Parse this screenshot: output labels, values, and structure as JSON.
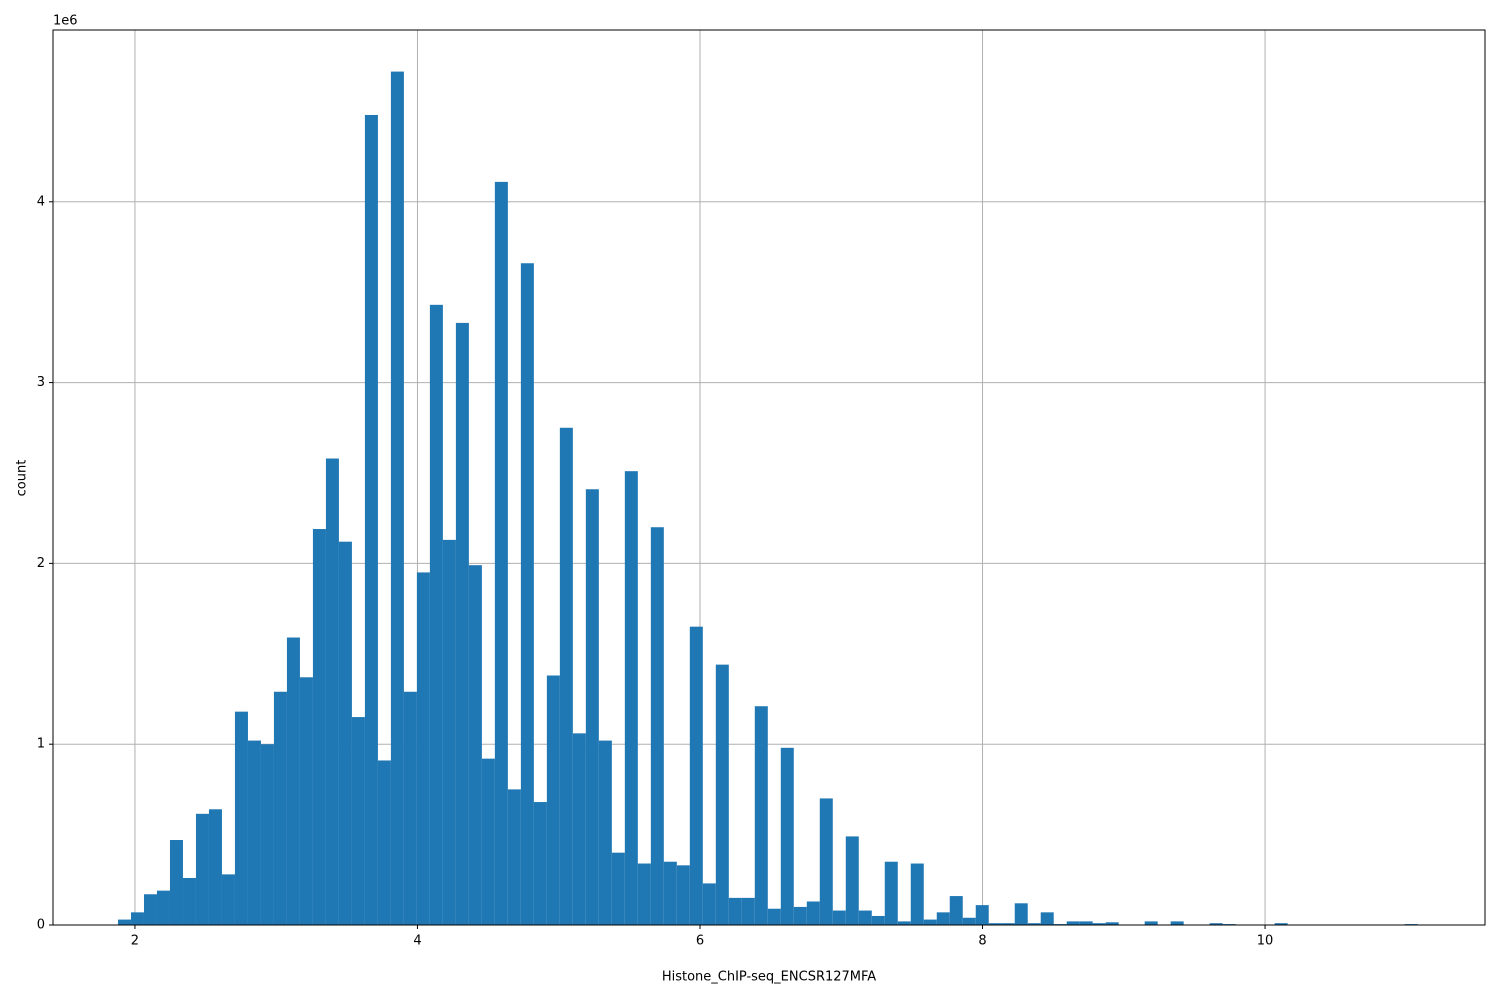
{
  "chart_data": {
    "type": "histogram",
    "xlabel": "Histone_ChIP-seq_ENCSR127MFA",
    "ylabel": "count",
    "y_offset_label": "1e6",
    "color": "#1f77b4",
    "grid": true,
    "bins": [
      1.88,
      1.972,
      2.064,
      2.156,
      2.248,
      2.34,
      2.432,
      2.524,
      2.616,
      2.708,
      2.8,
      2.892,
      2.984,
      3.076,
      3.168,
      3.26,
      3.352,
      3.444,
      3.536,
      3.628,
      3.72,
      3.812,
      3.904,
      3.996,
      4.088,
      4.18,
      4.272,
      4.364,
      4.456,
      4.548,
      4.64,
      4.732,
      4.824,
      4.916,
      5.008,
      5.1,
      5.192,
      5.284,
      5.376,
      5.468,
      5.56,
      5.652,
      5.744,
      5.836,
      5.928,
      6.02,
      6.112,
      6.204,
      6.296,
      6.388,
      6.48,
      6.572,
      6.664,
      6.756,
      6.848,
      6.94,
      7.032,
      7.124,
      7.216,
      7.308,
      7.4,
      7.492,
      7.584,
      7.676,
      7.768,
      7.86,
      7.952,
      8.044,
      8.136,
      8.228,
      8.32,
      8.412,
      8.504,
      8.596,
      8.688,
      8.78,
      8.872,
      8.964,
      9.056,
      9.148,
      9.24,
      9.332,
      9.424,
      9.516,
      9.608,
      9.7,
      9.792,
      9.884,
      9.976,
      10.068,
      10.16,
      10.252,
      10.344,
      10.436,
      10.528,
      10.62,
      10.712,
      10.804,
      10.896,
      10.988,
      11.08
    ],
    "counts": [
      30000,
      70000,
      170000,
      190000,
      470000,
      260000,
      615000,
      640000,
      280000,
      1180000,
      1020000,
      1000000,
      1290000,
      1590000,
      1370000,
      2190000,
      2580000,
      2120000,
      1150000,
      4480000,
      910000,
      4720000,
      1290000,
      1950000,
      3430000,
      2130000,
      3330000,
      1990000,
      920000,
      4110000,
      750000,
      3660000,
      680000,
      1380000,
      2750000,
      1060000,
      2410000,
      1020000,
      400000,
      2510000,
      340000,
      2200000,
      350000,
      330000,
      1650000,
      230000,
      1440000,
      150000,
      150000,
      1210000,
      90000,
      980000,
      100000,
      130000,
      700000,
      80000,
      490000,
      80000,
      50000,
      350000,
      20000,
      340000,
      30000,
      70000,
      160000,
      40000,
      110000,
      10000,
      10000,
      120000,
      10000,
      70000,
      5000,
      20000,
      20000,
      10000,
      15000,
      0,
      0,
      20000,
      0,
      20000,
      0,
      0,
      10000,
      5000,
      0,
      0,
      0,
      10000,
      0,
      0,
      0,
      0,
      0,
      0,
      0,
      0,
      0,
      5000
    ],
    "xlim": [
      1.42,
      11.557
    ],
    "ylim": [
      0,
      4950000
    ],
    "xticks": [
      2,
      4,
      6,
      8,
      10
    ],
    "yticks": [
      0,
      {
        "value": 1000000,
        "label": "1"
      },
      {
        "value": 2000000,
        "label": "2"
      },
      {
        "value": 3000000,
        "label": "3"
      },
      {
        "value": 4000000,
        "label": "4"
      }
    ]
  }
}
